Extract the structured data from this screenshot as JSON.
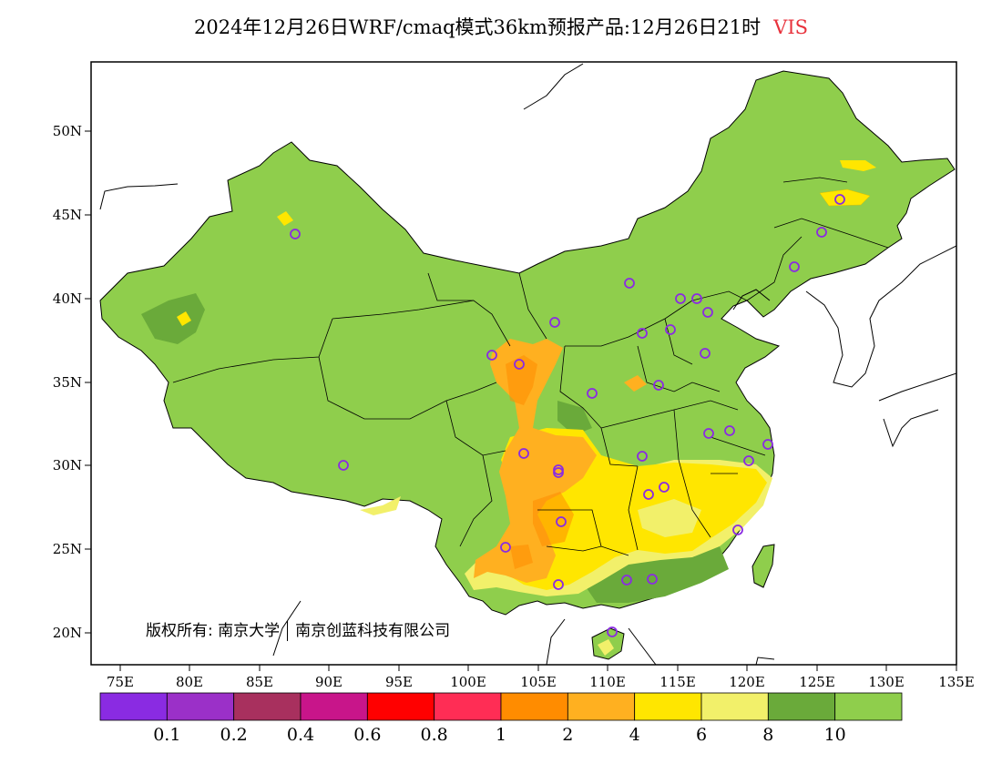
{
  "title": {
    "main": "2024年12月26日WRF/cmaq模式36km预报产品:12月26日21时",
    "variable": "VIS"
  },
  "map": {
    "lat_ticks": [
      "50N",
      "45N",
      "40N",
      "35N",
      "30N",
      "25N",
      "20N"
    ],
    "lon_ticks": [
      "75E",
      "80E",
      "85E",
      "90E",
      "95E",
      "100E",
      "105E",
      "110E",
      "115E",
      "120E",
      "125E",
      "130E",
      "135E"
    ],
    "colors": {
      "land_high": "#8fce4c",
      "dark_green": "#6aaa3a",
      "light_yellow": "#f2f06a",
      "yellow": "#ffe600",
      "orange_light": "#ffb020",
      "orange": "#ff8c00",
      "station_marker": "#8a2be2"
    },
    "stations_count": 34
  },
  "copyright": {
    "text": "版权所有: 南京大学",
    "text2": "南京创蓝科技有限公司"
  },
  "colorbar": {
    "colors": [
      "#8a2be2",
      "#9b30c8",
      "#a8305e",
      "#c8158a",
      "#ff0000",
      "#ff2d55",
      "#ff8c00",
      "#ffb020",
      "#ffe600",
      "#f2f06a",
      "#6aaa3a",
      "#8fce4c"
    ],
    "labels": [
      "0.1",
      "0.2",
      "0.4",
      "0.6",
      "0.8",
      "1",
      "2",
      "4",
      "6",
      "8",
      "10"
    ]
  }
}
